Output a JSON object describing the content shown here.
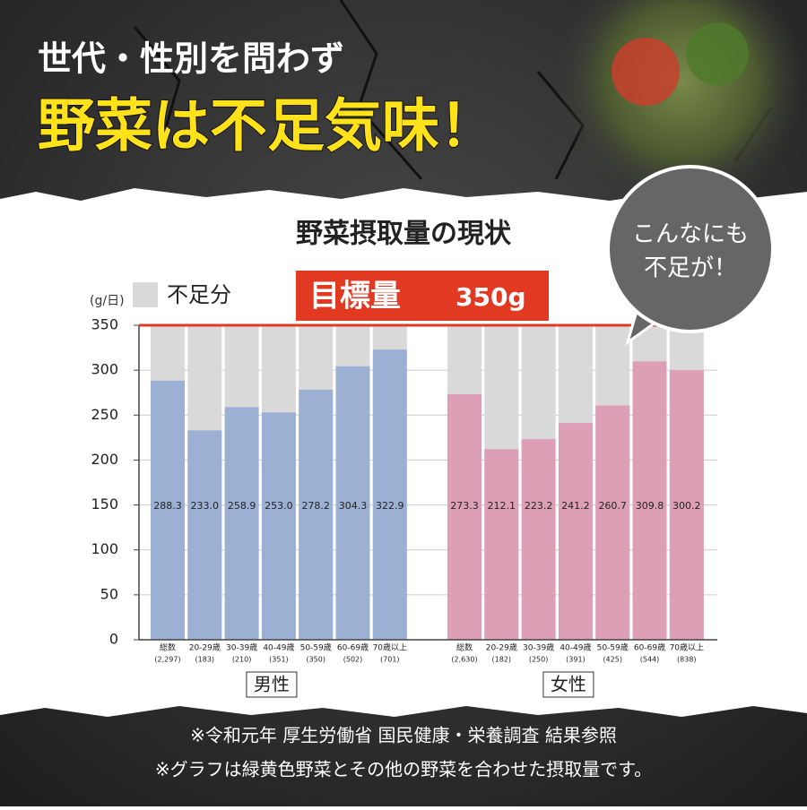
{
  "header": {
    "line1": "世代・性別を問わず",
    "line2": "野菜は不足気味！"
  },
  "chart_data": {
    "type": "bar",
    "title": "野菜摂取量の現状",
    "y_unit": "(g/日)",
    "legend": {
      "name": "不足分",
      "color": "#d9d9d9"
    },
    "target": {
      "label": "目標量",
      "value": 350,
      "value_label": "350g",
      "color": "#e23a22"
    },
    "ylim": [
      0,
      350
    ],
    "yticks": [
      0,
      50,
      100,
      150,
      200,
      250,
      300,
      350
    ],
    "grid": true,
    "callout": [
      "こんなにも",
      "不足が！"
    ],
    "groups": [
      {
        "name": "男性",
        "color": "#9bb0d3",
        "categories": [
          "総数",
          "20-29歳",
          "30-39歳",
          "40-49歳",
          "50-59歳",
          "60-69歳",
          "70歳以上"
        ],
        "sample_sizes": [
          "(2,297)",
          "(183)",
          "(210)",
          "(351)",
          "(350)",
          "(502)",
          "(701)"
        ],
        "values": [
          288.3,
          233.0,
          258.9,
          253.0,
          278.2,
          304.3,
          322.9
        ],
        "value_labels": [
          "288.3",
          "233.0",
          "258.9",
          "253.0",
          "278.2",
          "304.3",
          "322.9"
        ]
      },
      {
        "name": "女性",
        "color": "#dc9fb6",
        "categories": [
          "総数",
          "20-29歳",
          "30-39歳",
          "40-49歳",
          "50-59歳",
          "60-69歳",
          "70歳以上"
        ],
        "sample_sizes": [
          "(2,630)",
          "(182)",
          "(250)",
          "(391)",
          "(425)",
          "(544)",
          "(838)"
        ],
        "values": [
          273.3,
          212.1,
          223.2,
          241.2,
          260.7,
          309.8,
          300.2
        ],
        "value_labels": [
          "273.3",
          "212.1",
          "223.2",
          "241.2",
          "260.7",
          "309.8",
          "300.2"
        ]
      }
    ]
  },
  "footer": {
    "notes": [
      "※令和元年 厚生労働省 国民健康・栄養調査 結果参照",
      "※グラフは緑黄色野菜とその他の野菜を合わせた摂取量です。"
    ]
  }
}
